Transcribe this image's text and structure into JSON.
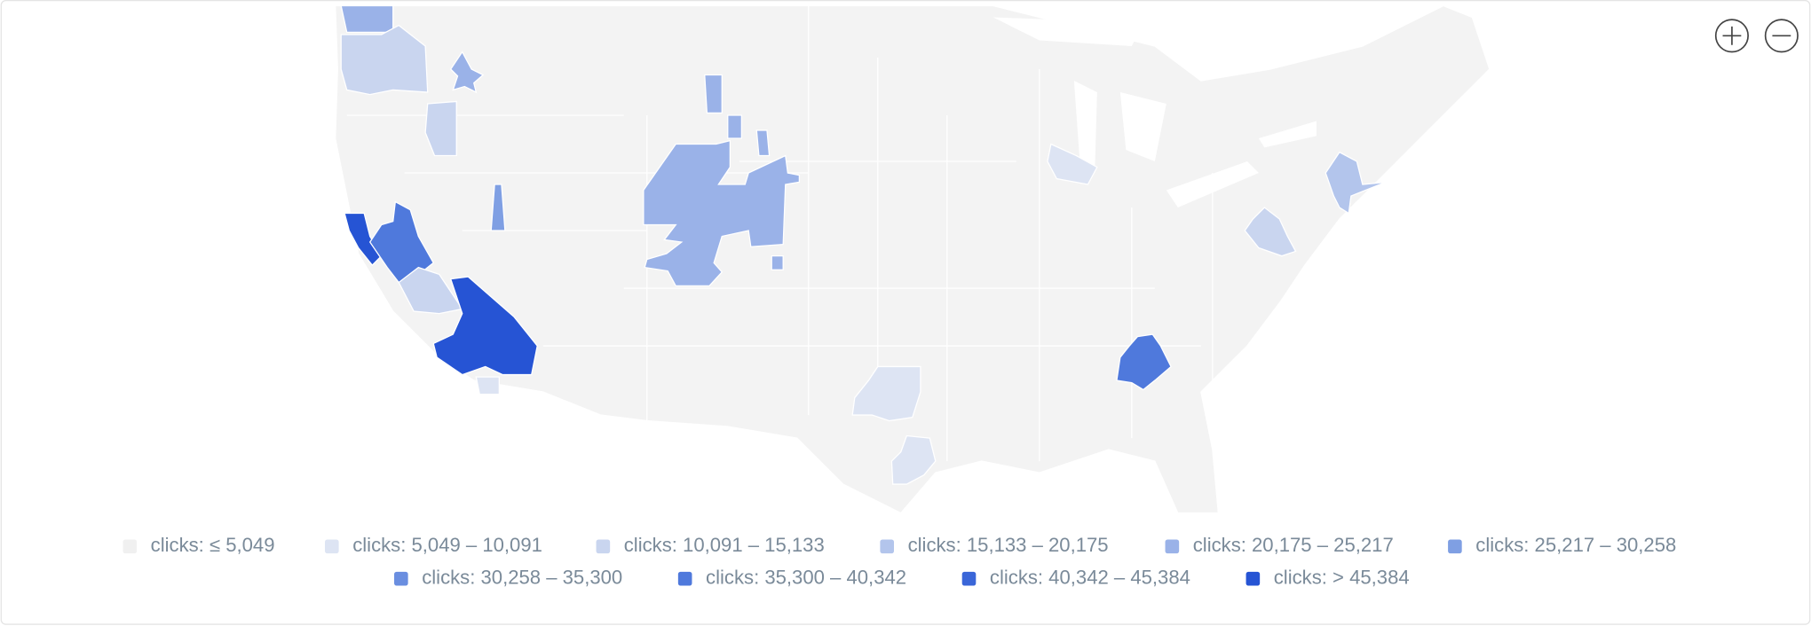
{
  "legend": [
    {
      "label": "clicks: ≤ 5,049",
      "color": "#f0f0f0"
    },
    {
      "label": "clicks: 5,049 – 10,091",
      "color": "#dde4f3"
    },
    {
      "label": "clicks: 10,091 – 15,133",
      "color": "#c9d5ef"
    },
    {
      "label": "clicks: 15,133 – 20,175",
      "color": "#b3c5ec"
    },
    {
      "label": "clicks: 20,175 – 25,217",
      "color": "#9ab2e8"
    },
    {
      "label": "clicks: 25,217 – 30,258",
      "color": "#7f9fe3"
    },
    {
      "label": "clicks: 30,258 – 35,300",
      "color": "#6a8ee0"
    },
    {
      "label": "clicks: 35,300 – 40,342",
      "color": "#4f79dc"
    },
    {
      "label": "clicks: 40,342 – 45,384",
      "color": "#3a66d8"
    },
    {
      "label": "clicks: > 45,384",
      "color": "#2654d4"
    }
  ]
}
